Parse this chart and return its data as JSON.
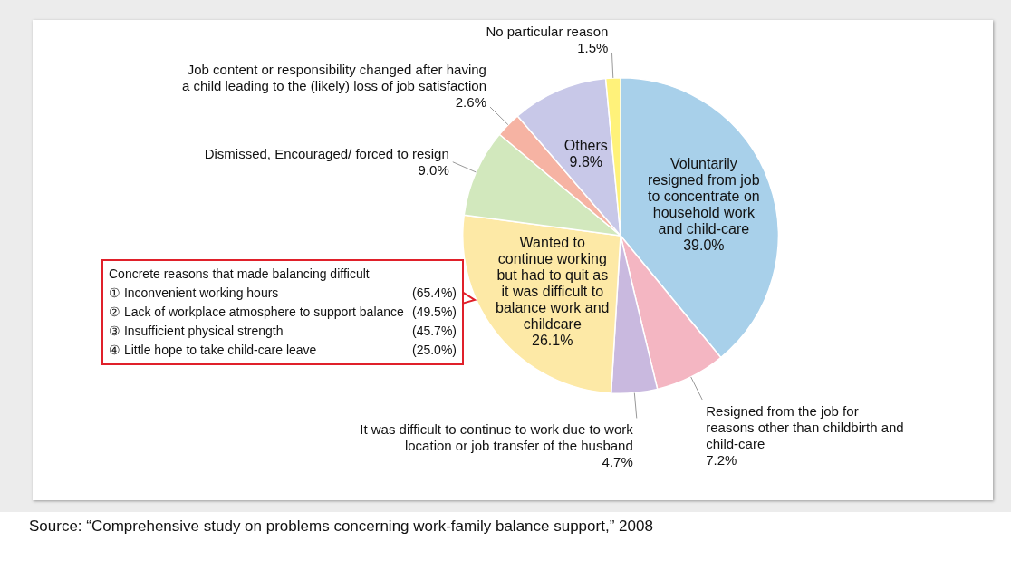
{
  "chart_data": {
    "type": "pie",
    "categories": [
      "Voluntarily resigned from job to concentrate on household work and child-care",
      "Resigned from the job for reasons other than childbirth and child-care",
      "It was difficult to continue to work due to work location or job transfer of the husband",
      "Wanted to continue working but had to quit as it was difficult to balance work and childcare",
      "Dismissed, Encouraged/ forced to resign",
      "Job content or responsibility changed after having a child leading to the (likely) loss of job satisfaction",
      "Others",
      "No particular reason"
    ],
    "values": [
      39.0,
      7.2,
      4.7,
      26.1,
      9.0,
      2.6,
      9.8,
      1.5
    ],
    "colors": [
      "#a8d0ea",
      "#f4b6c2",
      "#c9b9df",
      "#fde9a6",
      "#d2e8bd",
      "#f6b3a3",
      "#c8c8e8",
      "#fff27a"
    ],
    "value_labels": [
      "39.0%",
      "7.2%",
      "4.7%",
      "26.1%",
      "9.0%",
      "2.6%",
      "9.8%",
      "1.5%"
    ],
    "legend": false,
    "annotations": [
      "Concrete reasons that made balancing difficult",
      "① Inconvenient working hours (65.4%)",
      "② Lack of workplace atmosphere to support balance (49.5%)",
      "③ Insufficient physical strength (45.7%)",
      "④ Little hope to take child-care leave (25.0%)",
      "Source:  “Comprehensive study on problems concerning work-family balance support,” 2008"
    ]
  }
}
